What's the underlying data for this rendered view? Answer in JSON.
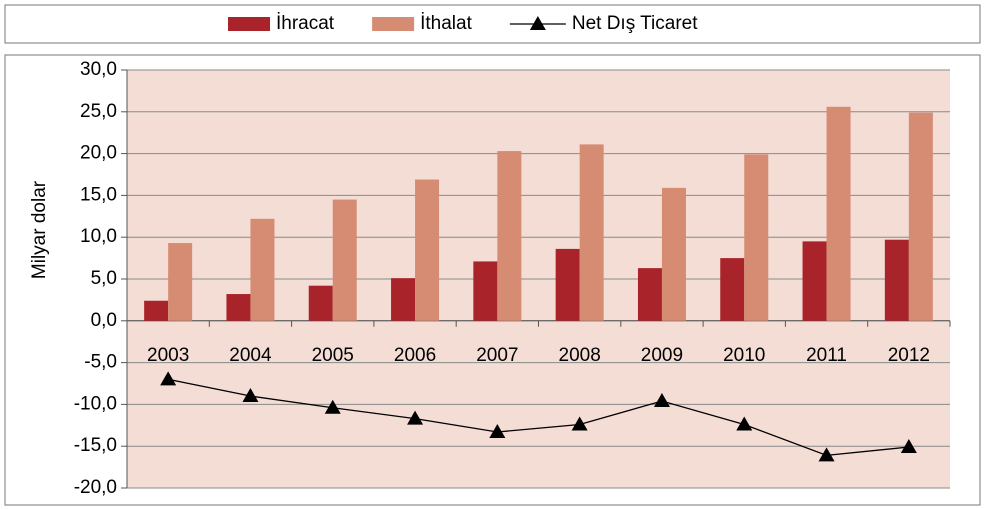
{
  "chart_data": {
    "type": "bar-line",
    "y_label": "Milyar dolar",
    "categories": [
      "2003",
      "2004",
      "2005",
      "2006",
      "2007",
      "2008",
      "2009",
      "2010",
      "2011",
      "2012"
    ],
    "series": [
      {
        "name": "İhracat",
        "type": "bar",
        "color": "#a8232a",
        "values": [
          2.4,
          3.2,
          4.2,
          5.1,
          7.1,
          8.6,
          6.3,
          7.5,
          9.5,
          9.7
        ]
      },
      {
        "name": "İthalat",
        "type": "bar",
        "color": "#d68b73",
        "values": [
          9.3,
          12.2,
          14.5,
          16.9,
          20.3,
          21.1,
          15.9,
          19.9,
          25.6,
          24.9
        ]
      },
      {
        "name": "Net Dış Ticaret",
        "type": "line",
        "color": "#000000",
        "values": [
          -7.0,
          -9.0,
          -10.4,
          -11.7,
          -13.3,
          -12.4,
          -9.6,
          -12.4,
          -16.1,
          -15.1
        ]
      }
    ],
    "ylim": [
      -20,
      30
    ],
    "yticks": [
      {
        "value": -20,
        "label": "-20,0"
      },
      {
        "value": -15,
        "label": "-15,0"
      },
      {
        "value": -10,
        "label": "-10,0"
      },
      {
        "value": -5,
        "label": "-5,0"
      },
      {
        "value": 0,
        "label": "0,0"
      },
      {
        "value": 5,
        "label": "5,0"
      },
      {
        "value": 10,
        "label": "10,0"
      },
      {
        "value": 15,
        "label": "15,0"
      },
      {
        "value": 20,
        "label": "20,0"
      },
      {
        "value": 25,
        "label": "25,0"
      },
      {
        "value": 30,
        "label": "30,0"
      }
    ],
    "grid": true,
    "legend": "top",
    "background": "#f3ddd5"
  }
}
